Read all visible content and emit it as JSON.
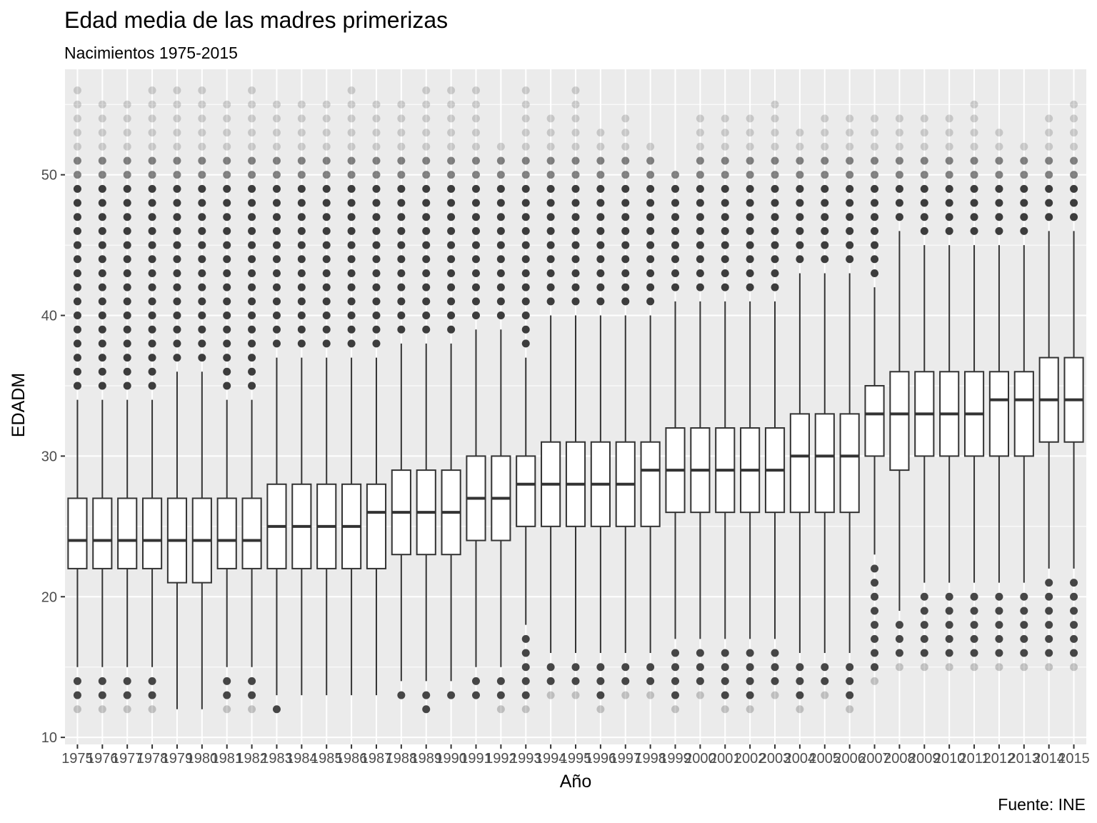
{
  "chart_data": {
    "type": "boxplot",
    "title": "Edad media de las madres primerizas",
    "subtitle": "Nacimientos 1975-2015",
    "caption": "Fuente: INE",
    "xlabel": "Año",
    "ylabel": "EDADM",
    "ylim": [
      9.5,
      57.5
    ],
    "yticks": [
      10,
      20,
      30,
      40,
      50
    ],
    "grid": true,
    "colors": {
      "panel": "#ebebeb",
      "grid": "#ffffff",
      "box_fill": "#ffffff",
      "box_line": "#333333",
      "points": "#333333"
    },
    "categories": [
      "1975",
      "1976",
      "1977",
      "1978",
      "1979",
      "1980",
      "1981",
      "1982",
      "1983",
      "1984",
      "1985",
      "1986",
      "1987",
      "1988",
      "1989",
      "1990",
      "1991",
      "1992",
      "1993",
      "1994",
      "1995",
      "1996",
      "1997",
      "1998",
      "1999",
      "2000",
      "2001",
      "2002",
      "2003",
      "2004",
      "2005",
      "2006",
      "2007",
      "2008",
      "2009",
      "2010",
      "2011",
      "2012",
      "2013",
      "2014",
      "2015"
    ],
    "q1": [
      22,
      22,
      22,
      22,
      21,
      21,
      22,
      22,
      22,
      22,
      22,
      22,
      22,
      23,
      23,
      23,
      24,
      24,
      25,
      25,
      25,
      25,
      25,
      25,
      26,
      26,
      26,
      26,
      26,
      26,
      26,
      26,
      30,
      29,
      30,
      30,
      30,
      30,
      30,
      31,
      31
    ],
    "median": [
      24,
      24,
      24,
      24,
      24,
      24,
      24,
      24,
      25,
      25,
      25,
      25,
      26,
      26,
      26,
      26,
      27,
      27,
      28,
      28,
      28,
      28,
      28,
      29,
      29,
      29,
      29,
      29,
      29,
      30,
      30,
      30,
      33,
      33,
      33,
      33,
      33,
      34,
      34,
      34,
      34
    ],
    "q3": [
      27,
      27,
      27,
      27,
      27,
      27,
      27,
      27,
      28,
      28,
      28,
      28,
      28,
      29,
      29,
      29,
      30,
      30,
      30,
      31,
      31,
      31,
      31,
      31,
      32,
      32,
      32,
      32,
      32,
      33,
      33,
      33,
      35,
      36,
      36,
      36,
      36,
      36,
      36,
      37,
      37
    ],
    "whisker_low": [
      15,
      15,
      15,
      15,
      12,
      12,
      15,
      15,
      13,
      13,
      13,
      13,
      13,
      14,
      14,
      14,
      15,
      15,
      18,
      16,
      16,
      16,
      16,
      16,
      17,
      17,
      17,
      17,
      17,
      16,
      16,
      16,
      23,
      19,
      21,
      21,
      21,
      21,
      21,
      22,
      22
    ],
    "whisker_high": [
      34,
      34,
      34,
      34,
      36,
      36,
      34,
      34,
      37,
      37,
      37,
      37,
      37,
      38,
      38,
      38,
      39,
      39,
      37,
      40,
      40,
      40,
      40,
      40,
      41,
      41,
      41,
      41,
      41,
      43,
      43,
      43,
      42,
      46,
      45,
      45,
      45,
      45,
      45,
      46,
      46
    ],
    "outliers_low": [
      [
        12,
        13,
        14
      ],
      [
        12,
        13,
        14
      ],
      [
        12,
        13,
        14
      ],
      [
        12,
        13,
        14
      ],
      [],
      [],
      [
        12,
        13,
        14
      ],
      [
        12,
        13,
        14
      ],
      [
        12
      ],
      [],
      [],
      [],
      [],
      [
        13
      ],
      [
        12,
        13
      ],
      [
        13
      ],
      [
        13,
        14
      ],
      [
        12,
        13,
        14
      ],
      [
        12,
        13,
        14,
        15,
        16,
        17
      ],
      [
        13,
        14,
        15
      ],
      [
        13,
        14,
        15
      ],
      [
        12,
        13,
        14,
        15
      ],
      [
        13,
        14,
        15
      ],
      [
        13,
        14,
        15
      ],
      [
        12,
        13,
        14,
        15,
        16
      ],
      [
        13,
        14,
        15,
        16
      ],
      [
        12,
        13,
        14,
        15,
        16
      ],
      [
        12,
        13,
        14,
        15,
        16
      ],
      [
        13,
        14,
        15,
        16
      ],
      [
        12,
        13,
        14,
        15
      ],
      [
        13,
        14,
        15
      ],
      [
        12,
        13,
        14,
        15
      ],
      [
        14,
        15,
        16,
        17,
        18,
        19,
        20,
        21,
        22
      ],
      [
        15,
        16,
        17,
        18
      ],
      [
        15,
        16,
        17,
        18,
        19,
        20
      ],
      [
        15,
        16,
        17,
        18,
        19,
        20
      ],
      [
        15,
        16,
        17,
        18,
        19,
        20
      ],
      [
        15,
        16,
        17,
        18,
        19,
        20
      ],
      [
        15,
        16,
        17,
        18,
        19,
        20
      ],
      [
        15,
        16,
        17,
        18,
        19,
        20,
        21
      ],
      [
        15,
        16,
        17,
        18,
        19,
        20,
        21
      ]
    ],
    "outliers_high": [
      [
        35,
        56
      ],
      [
        35,
        55
      ],
      [
        35,
        55
      ],
      [
        35,
        56
      ],
      [
        37,
        56
      ],
      [
        37,
        56
      ],
      [
        35,
        55
      ],
      [
        35,
        56
      ],
      [
        38,
        55
      ],
      [
        38,
        55
      ],
      [
        38,
        55
      ],
      [
        38,
        56
      ],
      [
        38,
        55
      ],
      [
        39,
        55
      ],
      [
        39,
        56
      ],
      [
        39,
        56
      ],
      [
        40,
        56
      ],
      [
        40,
        52
      ],
      [
        38,
        56
      ],
      [
        41,
        54
      ],
      [
        41,
        56
      ],
      [
        41,
        53
      ],
      [
        41,
        54
      ],
      [
        41,
        52
      ],
      [
        42,
        50
      ],
      [
        42,
        54
      ],
      [
        42,
        54
      ],
      [
        42,
        54
      ],
      [
        42,
        55
      ],
      [
        44,
        53
      ],
      [
        44,
        54
      ],
      [
        44,
        54
      ],
      [
        43,
        54
      ],
      [
        47,
        54
      ],
      [
        46,
        54
      ],
      [
        46,
        54
      ],
      [
        46,
        55
      ],
      [
        46,
        53
      ],
      [
        46,
        52
      ],
      [
        47,
        54
      ],
      [
        47,
        55
      ]
    ]
  }
}
